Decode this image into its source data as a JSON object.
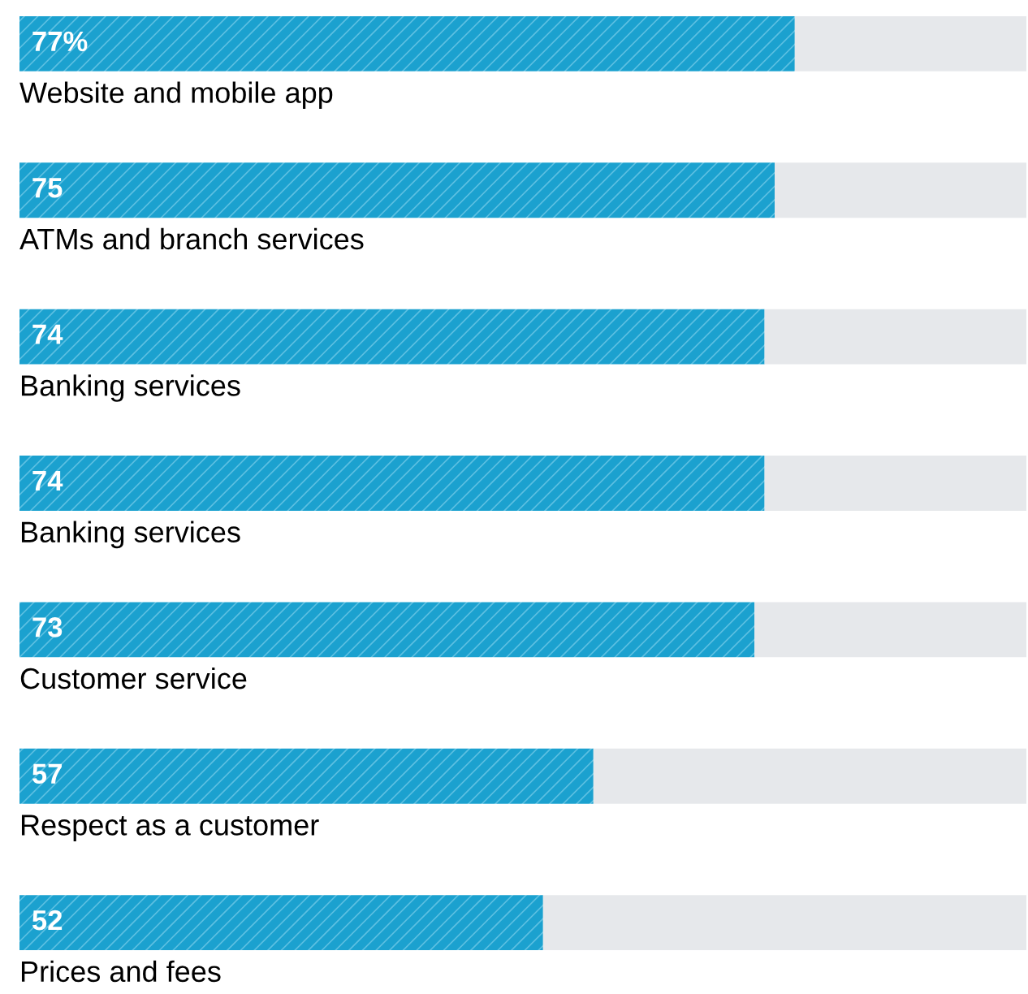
{
  "chart_data": {
    "type": "bar",
    "orientation": "horizontal",
    "stacked": true,
    "categories": [
      "Website and mobile app",
      "ATMs and branch services",
      "Banking services",
      "Banking services",
      "Customer service",
      "Respect as a customer",
      "Prices and fees"
    ],
    "series": [
      {
        "color": "#1ba1cf",
        "values": [
          77,
          75,
          74,
          74,
          73,
          57,
          52
        ],
        "value_labels": [
          "77%",
          "75",
          "74",
          "74",
          "73",
          "57",
          "52"
        ]
      },
      {
        "color": "#e6e8eb",
        "values": [
          23,
          25,
          26,
          26,
          27,
          43,
          48
        ]
      }
    ],
    "xlim": [
      0,
      100
    ],
    "tick_labels": false
  }
}
